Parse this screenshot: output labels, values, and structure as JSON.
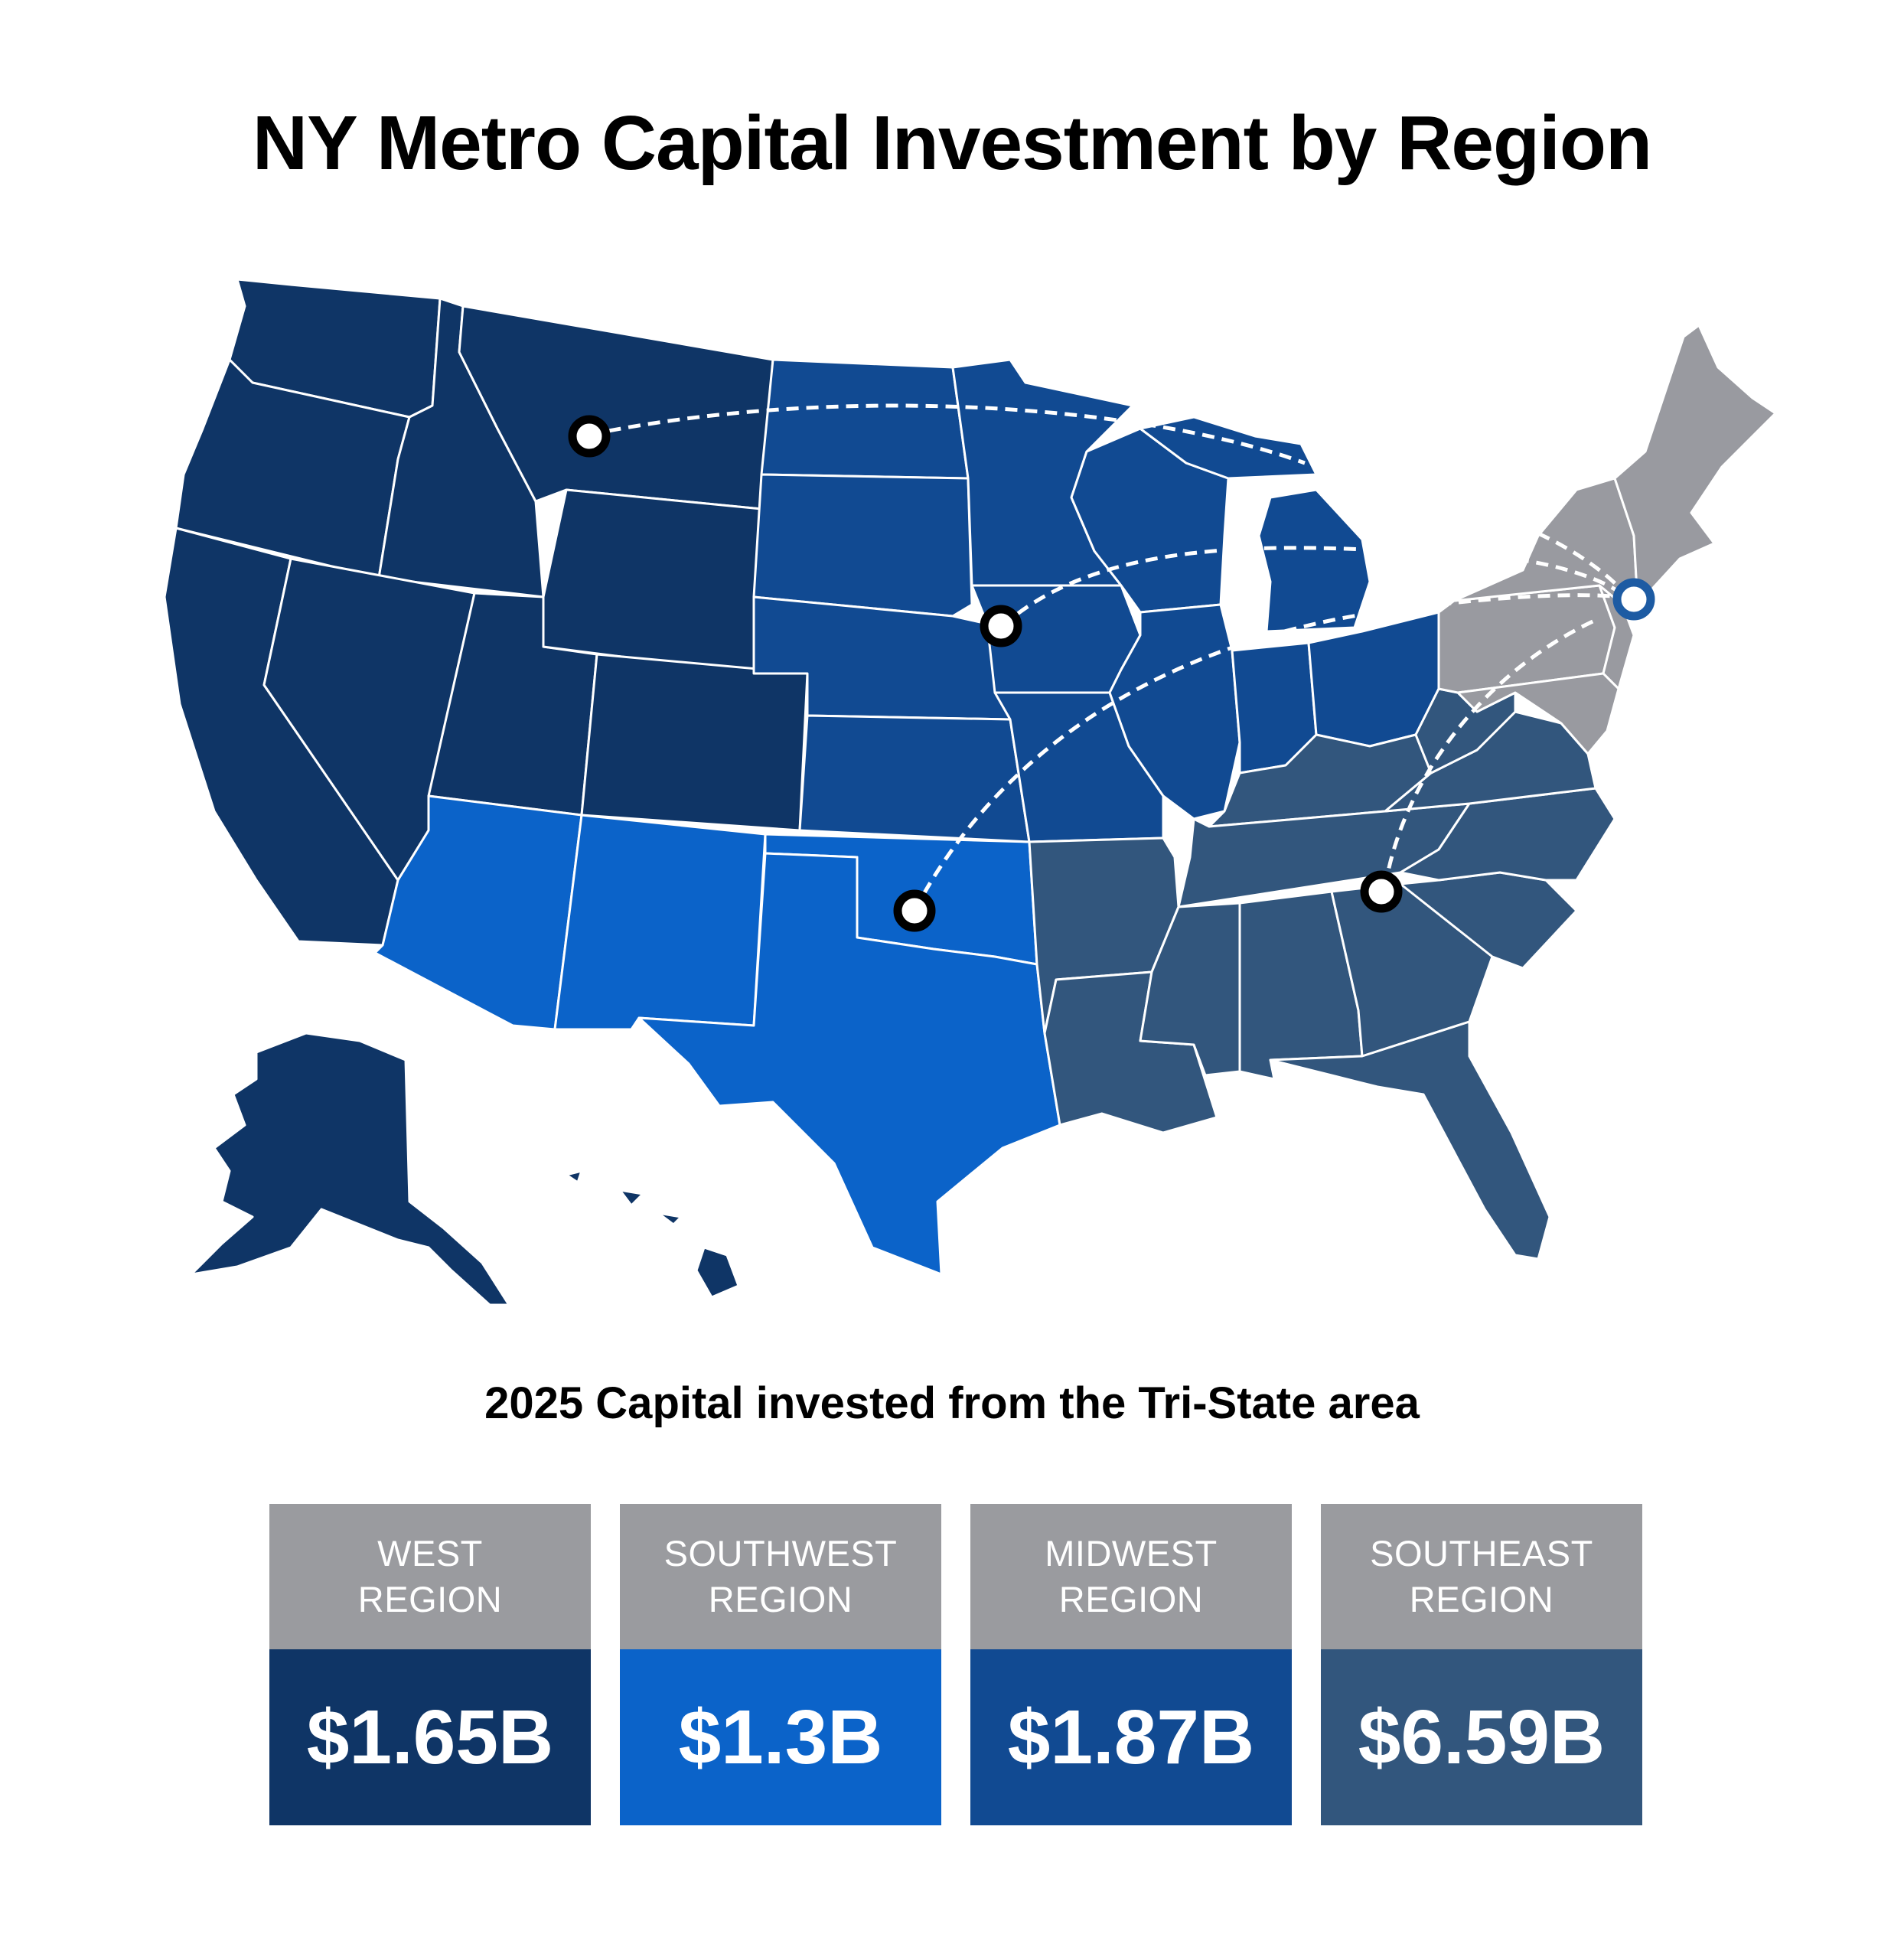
{
  "title": "NY Metro Capital Investment by Region",
  "subtitle": "2025 Capital invested from the Tri-State area",
  "colors": {
    "west": "#0f3566",
    "southwest": "#0b63c9",
    "midwest": "#114a92",
    "southeast": "#32567d",
    "northeast": "#999aa0",
    "card_header": "#9a9b9f",
    "tri_state_marker": "#1d5ba3"
  },
  "regions": [
    {
      "key": "west",
      "line1": "West",
      "line2": "Region",
      "value": "$1.65B",
      "color": "#0f3566"
    },
    {
      "key": "southwest",
      "line1": "Southwest",
      "line2": "Region",
      "value": "$1.3B",
      "color": "#0b63c9"
    },
    {
      "key": "midwest",
      "line1": "Midwest",
      "line2": "Region",
      "value": "$1.87B",
      "color": "#114a92"
    },
    {
      "key": "southeast",
      "line1": "Southeast",
      "line2": "Region",
      "value": "$6.59B",
      "color": "#32567d"
    }
  ]
}
